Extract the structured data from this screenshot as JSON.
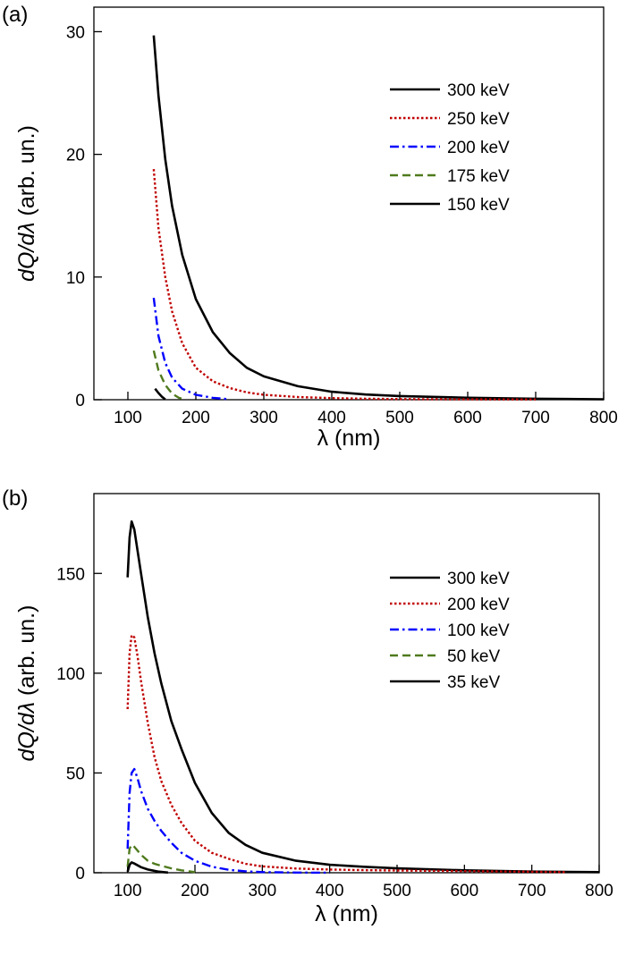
{
  "chart_data": [
    {
      "type": "line",
      "panel_label": "(a)",
      "xlabel": "λ (nm)",
      "ylabel_italic": "dQ/dλ",
      "ylabel_rest": " (arb. un.)",
      "xlim": [
        50,
        800
      ],
      "ylim": [
        0,
        32
      ],
      "xticks": [
        100,
        200,
        300,
        400,
        500,
        600,
        700,
        800
      ],
      "yticks": [
        0,
        10,
        20,
        30
      ],
      "legend_position": "top-right",
      "series": [
        {
          "name": "300 keV",
          "color": "#000000",
          "dash": "solid",
          "x": [
            138,
            145,
            155,
            165,
            180,
            200,
            225,
            250,
            275,
            300,
            350,
            400,
            450,
            500,
            600,
            700,
            800
          ],
          "y": [
            29.7,
            24.8,
            19.6,
            15.8,
            11.8,
            8.2,
            5.5,
            3.8,
            2.6,
            1.9,
            1.1,
            0.65,
            0.42,
            0.3,
            0.16,
            0.08,
            0.04
          ]
        },
        {
          "name": "250 keV",
          "color": "#c00000",
          "dash": "dotted",
          "x": [
            138,
            145,
            155,
            165,
            180,
            200,
            225,
            250,
            275,
            300,
            350,
            400,
            450,
            500,
            600,
            700
          ],
          "y": [
            18.8,
            14.0,
            10.0,
            7.2,
            4.6,
            2.6,
            1.5,
            0.95,
            0.6,
            0.4,
            0.22,
            0.13,
            0.08,
            0.05,
            0.03,
            0.02
          ]
        },
        {
          "name": "200 keV",
          "color": "#0000ff",
          "dash": "dashdot",
          "x": [
            138,
            145,
            155,
            165,
            180,
            200,
            225,
            250
          ],
          "y": [
            8.3,
            5.2,
            3.0,
            1.8,
            0.9,
            0.4,
            0.15,
            0.04
          ]
        },
        {
          "name": "175 keV",
          "color": "#4f7a1d",
          "dash": "dashed",
          "x": [
            138,
            145,
            155,
            165,
            175,
            185
          ],
          "y": [
            4.0,
            2.4,
            1.2,
            0.5,
            0.15,
            0.02
          ]
        },
        {
          "name": "150 keV",
          "color": "#000000",
          "dash": "solid",
          "x": [
            140,
            145,
            150,
            155
          ],
          "y": [
            0.9,
            0.55,
            0.25,
            0.03
          ]
        }
      ]
    },
    {
      "type": "line",
      "panel_label": "(b)",
      "xlabel": "λ (nm)",
      "ylabel_italic": "dQ/dλ",
      "ylabel_rest": " (arb. un.)",
      "xlim": [
        50,
        800
      ],
      "ylim": [
        0,
        190
      ],
      "xticks": [
        100,
        200,
        300,
        400,
        500,
        600,
        700,
        800
      ],
      "yticks": [
        0,
        50,
        100,
        150
      ],
      "legend_position": "top-right",
      "series": [
        {
          "name": "300 keV",
          "color": "#000000",
          "dash": "solid",
          "x": [
            100,
            103,
            106,
            110,
            120,
            130,
            140,
            150,
            165,
            180,
            200,
            225,
            250,
            275,
            300,
            350,
            400,
            450,
            500,
            600,
            700,
            800
          ],
          "y": [
            148,
            168,
            176,
            172,
            150,
            128,
            110,
            95,
            76,
            62,
            45,
            30,
            20,
            14,
            10,
            6,
            4,
            3,
            2.2,
            1.2,
            0.6,
            0.3
          ]
        },
        {
          "name": "200 keV",
          "color": "#c00000",
          "dash": "dotted",
          "x": [
            100,
            103,
            106,
            110,
            115,
            120,
            130,
            140,
            150,
            165,
            180,
            200,
            225,
            250,
            275,
            300,
            350,
            400,
            450,
            500,
            600,
            700,
            750
          ],
          "y": [
            82,
            110,
            119,
            118,
            108,
            96,
            75,
            58,
            46,
            34,
            25,
            16,
            10,
            7,
            4.5,
            3.2,
            2.1,
            1.6,
            1.3,
            1.1,
            0.8,
            0.5,
            0.3
          ]
        },
        {
          "name": "100 keV",
          "color": "#0000ff",
          "dash": "dashdot",
          "x": [
            100,
            103,
            106,
            110,
            115,
            120,
            130,
            140,
            150,
            165,
            180,
            200,
            225,
            250,
            275,
            300,
            350,
            400
          ],
          "y": [
            12,
            40,
            50,
            52,
            47,
            41,
            32,
            26,
            21,
            15,
            10,
            6,
            3,
            1.5,
            0.7,
            0.3,
            0.1,
            0.02
          ]
        },
        {
          "name": "50 keV",
          "color": "#4f7a1d",
          "dash": "dashed",
          "x": [
            100,
            103,
            106,
            110,
            115,
            120,
            130,
            140,
            150,
            165,
            180,
            200
          ],
          "y": [
            3,
            12,
            14,
            13,
            11,
            9,
            6,
            4.5,
            3.5,
            2.2,
            1.2,
            0.3
          ]
        },
        {
          "name": "35 keV",
          "color": "#000000",
          "dash": "solid",
          "x": [
            100,
            103,
            106,
            110,
            120,
            130,
            145,
            160
          ],
          "y": [
            0.5,
            4,
            5.2,
            4.6,
            2.8,
            1.6,
            0.6,
            0.1
          ]
        }
      ]
    }
  ]
}
